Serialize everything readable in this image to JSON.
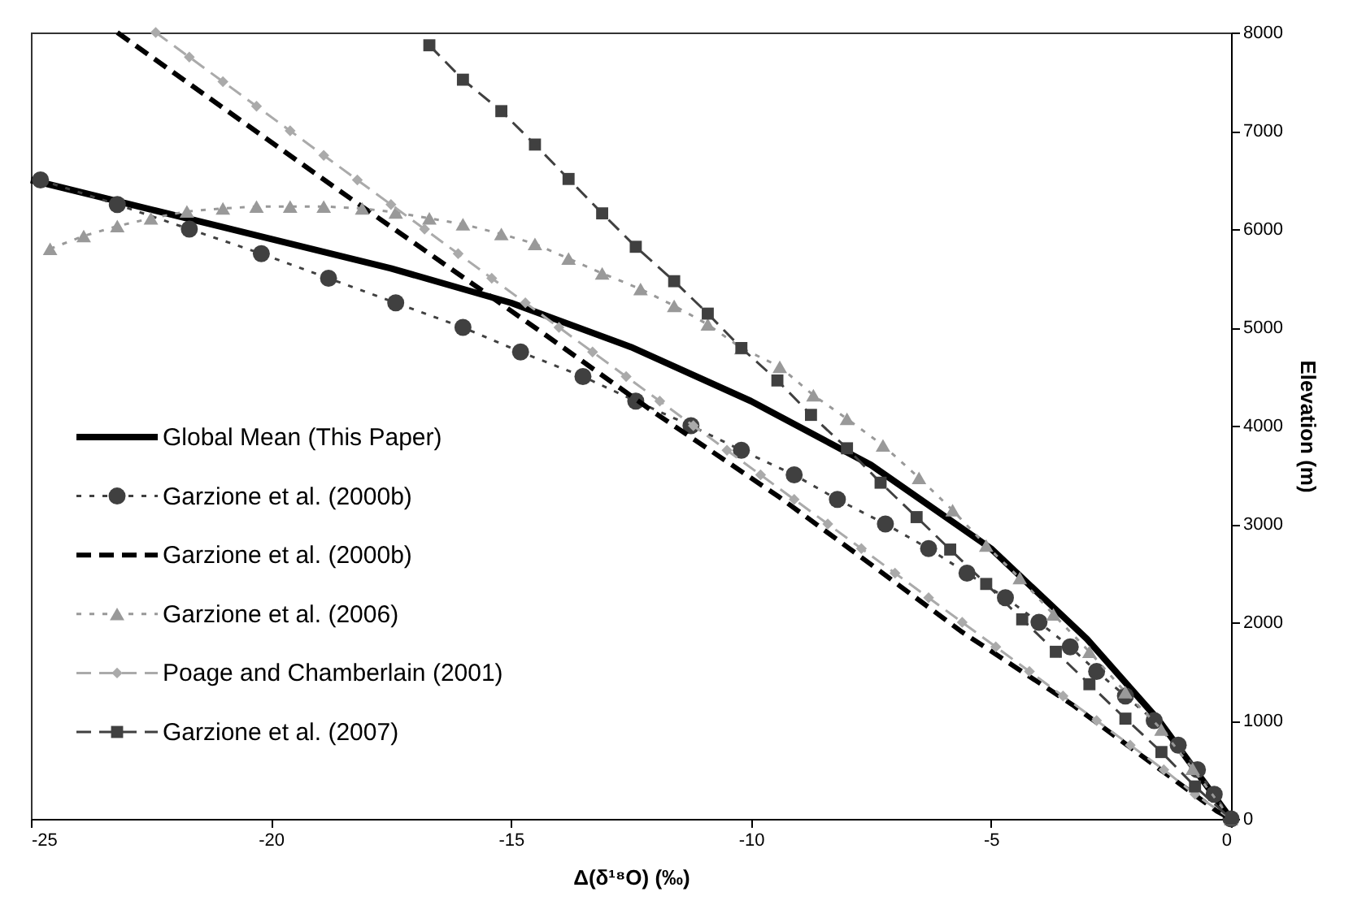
{
  "chart_data": {
    "type": "line",
    "xlabel": "Δ(δ¹⁸O) (‰)",
    "ylabel": "Elevation (m)",
    "xlim": [
      -25,
      0
    ],
    "xticks": [
      -25,
      -20,
      -15,
      -10,
      -5,
      0
    ],
    "ylim": [
      0,
      8000
    ],
    "yticks": [
      0,
      1000,
      2000,
      3000,
      4000,
      5000,
      6000,
      7000,
      8000
    ],
    "grid": false,
    "legend": "left",
    "series": [
      {
        "name": "Global Mean (This Paper)",
        "color": "#000000",
        "line_style": "solid",
        "marker": "none",
        "x": [
          -25,
          -22.5,
          -20,
          -17.5,
          -15,
          -12.5,
          -10,
          -7.5,
          -5,
          -3,
          -1.5,
          0
        ],
        "values": [
          6500,
          6200,
          5900,
          5600,
          5250,
          4800,
          4250,
          3600,
          2750,
          1830,
          1000,
          0
        ]
      },
      {
        "name": "Garzione et al. (2000b)",
        "color": "#404040",
        "line_style": "dotted",
        "marker": "circle",
        "x": [
          -24.8,
          -23.2,
          -21.7,
          -20.2,
          -18.8,
          -17.4,
          -16,
          -14.8,
          -13.5,
          -12.4,
          -11.25,
          -10.2,
          -9.1,
          -8.2,
          -7.2,
          -6.3,
          -5.5,
          -4.7,
          -4,
          -3.35,
          -2.8,
          -2.2,
          -1.6,
          -1.1,
          -0.7,
          -0.35,
          0
        ],
        "values": [
          6500,
          6250,
          6000,
          5750,
          5500,
          5250,
          5000,
          4750,
          4500,
          4250,
          4000,
          3750,
          3500,
          3250,
          3000,
          2750,
          2500,
          2250,
          2000,
          1750,
          1500,
          1250,
          1000,
          750,
          500,
          250,
          0
        ]
      },
      {
        "name": "Garzione et al. (2000b)",
        "color": "#000000",
        "line_style": "dashed",
        "marker": "none",
        "x": [
          -23.2,
          -18.6,
          -14.3,
          -12,
          -9.4,
          -7.7,
          -5.6,
          -3.3,
          -0.3,
          0
        ],
        "values": [
          8000,
          6400,
          4930,
          4130,
          3270,
          2660,
          1900,
          1160,
          80,
          0
        ]
      },
      {
        "name": "Garzione et al. (2006)",
        "color": "#999999",
        "line_style": "dotted",
        "marker": "triangle",
        "x": [
          -24.6,
          -23.9,
          -23.2,
          -22.5,
          -21.75,
          -21,
          -20.3,
          -19.6,
          -18.9,
          -18.1,
          -17.4,
          -16.7,
          -16,
          -15.2,
          -14.5,
          -13.8,
          -13.1,
          -12.3,
          -11.6,
          -10.9,
          -10.2,
          -9.4,
          -8.7,
          -8,
          -7.25,
          -6.5,
          -5.8,
          -5.1,
          -4.4,
          -3.7,
          -2.95,
          -2.2,
          -1.45,
          -0.8,
          0
        ],
        "values": [
          5800,
          5930,
          6030,
          6110,
          6180,
          6210,
          6230,
          6230,
          6230,
          6210,
          6170,
          6110,
          6050,
          5950,
          5850,
          5700,
          5550,
          5390,
          5220,
          5030,
          4790,
          4600,
          4310,
          4070,
          3800,
          3470,
          3140,
          2780,
          2450,
          2080,
          1700,
          1290,
          910,
          510,
          0
        ]
      },
      {
        "name": "Poage and Chamberlain (2001)",
        "color": "#aaaaaa",
        "line_style": "dashed",
        "marker": "diamond",
        "x": [
          -22.4,
          -21.7,
          -21,
          -20.3,
          -19.6,
          -18.9,
          -18.2,
          -17.5,
          -16.8,
          -16.1,
          -15.4,
          -14.7,
          -14,
          -13.3,
          -12.6,
          -11.9,
          -11.2,
          -10.5,
          -9.8,
          -9.1,
          -8.4,
          -7.7,
          -7,
          -6.3,
          -5.6,
          -4.9,
          -4.2,
          -3.5,
          -2.8,
          -2.1,
          -1.4,
          -0.75,
          0
        ],
        "values": [
          8000,
          7750,
          7500,
          7250,
          7000,
          6750,
          6500,
          6250,
          6000,
          5750,
          5500,
          5250,
          5000,
          4750,
          4500,
          4250,
          4000,
          3750,
          3500,
          3250,
          3000,
          2750,
          2500,
          2250,
          2000,
          1750,
          1500,
          1250,
          1000,
          750,
          500,
          250,
          0
        ]
      },
      {
        "name": "Garzione et al. (2007)",
        "color": "#404040",
        "line_style": "dashed",
        "marker": "square",
        "x": [
          -16.7,
          -16,
          -15.2,
          -14.5,
          -13.8,
          -13.1,
          -12.4,
          -11.6,
          -10.9,
          -10.2,
          -9.45,
          -8.75,
          -8,
          -7.3,
          -6.55,
          -5.85,
          -5.1,
          -4.35,
          -3.65,
          -2.95,
          -2.2,
          -1.45,
          -0.75,
          0
        ],
        "values": [
          7870,
          7520,
          7200,
          6860,
          6510,
          6160,
          5820,
          5470,
          5140,
          4790,
          4460,
          4110,
          3770,
          3420,
          3070,
          2740,
          2390,
          2030,
          1700,
          1370,
          1020,
          680,
          330,
          0
        ]
      }
    ]
  }
}
